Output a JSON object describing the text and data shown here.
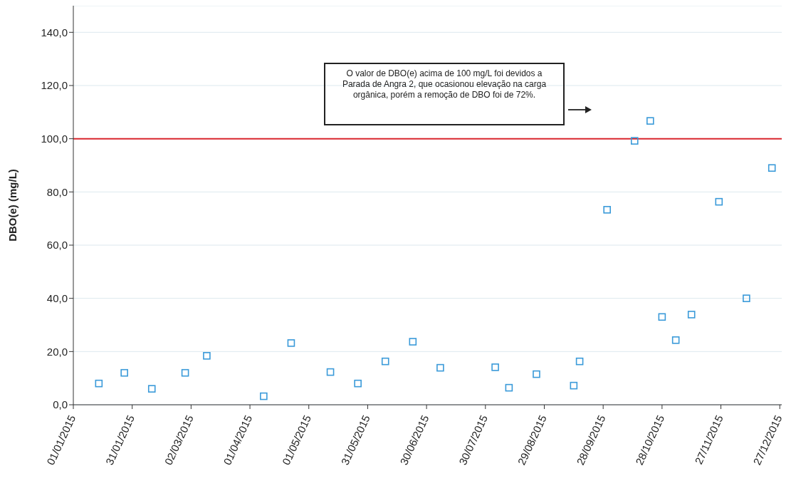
{
  "chart_data": {
    "type": "scatter",
    "ylabel": "DBO(e) (mg/L)",
    "marker": "square",
    "grid": "y",
    "legend": false,
    "x": [
      "2015-01-14",
      "2015-01-27",
      "2015-02-10",
      "2015-02-27",
      "2015-03-10",
      "2015-04-08",
      "2015-04-22",
      "2015-05-12",
      "2015-05-26",
      "2015-06-09",
      "2015-06-23",
      "2015-07-07",
      "2015-08-04",
      "2015-08-11",
      "2015-08-25",
      "2015-09-13",
      "2015-09-16",
      "2015-09-30",
      "2015-10-14",
      "2015-10-22",
      "2015-10-28",
      "2015-11-04",
      "2015-11-12",
      "2015-11-26",
      "2015-12-10",
      "2015-12-23"
    ],
    "series": [
      {
        "color": "#3a9ad9",
        "values": [
          8,
          12,
          6,
          12,
          18.4,
          3.2,
          23.2,
          12.3,
          8,
          16.3,
          23.7,
          13.9,
          14.1,
          6.4,
          11.5,
          7.2,
          16.3,
          73.3,
          99.2,
          106.7,
          33,
          24.3,
          33.9,
          76.3,
          40,
          89
        ]
      }
    ],
    "xlim": [
      "2015-01-01",
      "2015-12-28"
    ],
    "xticks": [
      {
        "value": "2015-01-01",
        "label": "01/01/2015"
      },
      {
        "value": "2015-01-31",
        "label": "31/01/2015"
      },
      {
        "value": "2015-03-02",
        "label": "02/03/2015"
      },
      {
        "value": "2015-04-01",
        "label": "01/04/2015"
      },
      {
        "value": "2015-05-01",
        "label": "01/05/2015"
      },
      {
        "value": "2015-05-31",
        "label": "31/05/2015"
      },
      {
        "value": "2015-06-30",
        "label": "30/06/2015"
      },
      {
        "value": "2015-07-30",
        "label": "30/07/2015"
      },
      {
        "value": "2015-08-29",
        "label": "29/08/2015"
      },
      {
        "value": "2015-09-28",
        "label": "28/09/2015"
      },
      {
        "value": "2015-10-28",
        "label": "28/10/2015"
      },
      {
        "value": "2015-11-27",
        "label": "27/11/2015"
      },
      {
        "value": "2015-12-27",
        "label": "27/12/2015"
      }
    ],
    "ylim": [
      0,
      150
    ],
    "yticks": [
      {
        "value": 0,
        "label": "0,0"
      },
      {
        "value": 20,
        "label": "20,0"
      },
      {
        "value": 40,
        "label": "40,0"
      },
      {
        "value": 60,
        "label": "60,0"
      },
      {
        "value": 80,
        "label": "80,0"
      },
      {
        "value": 100,
        "label": "100,0"
      },
      {
        "value": 120,
        "label": "120,0"
      },
      {
        "value": 140,
        "label": "140,0"
      }
    ],
    "ref_lines": [
      {
        "axis": "y",
        "value": 100,
        "color": "#d9262e"
      }
    ],
    "annotations": [
      "O valor de DBO(e) acima de 100 mg/L foi devidos a Parada de Angra 2, que ocasionou elevação  na carga orgânica, porém a remoção de DBO foi de 72%."
    ]
  }
}
